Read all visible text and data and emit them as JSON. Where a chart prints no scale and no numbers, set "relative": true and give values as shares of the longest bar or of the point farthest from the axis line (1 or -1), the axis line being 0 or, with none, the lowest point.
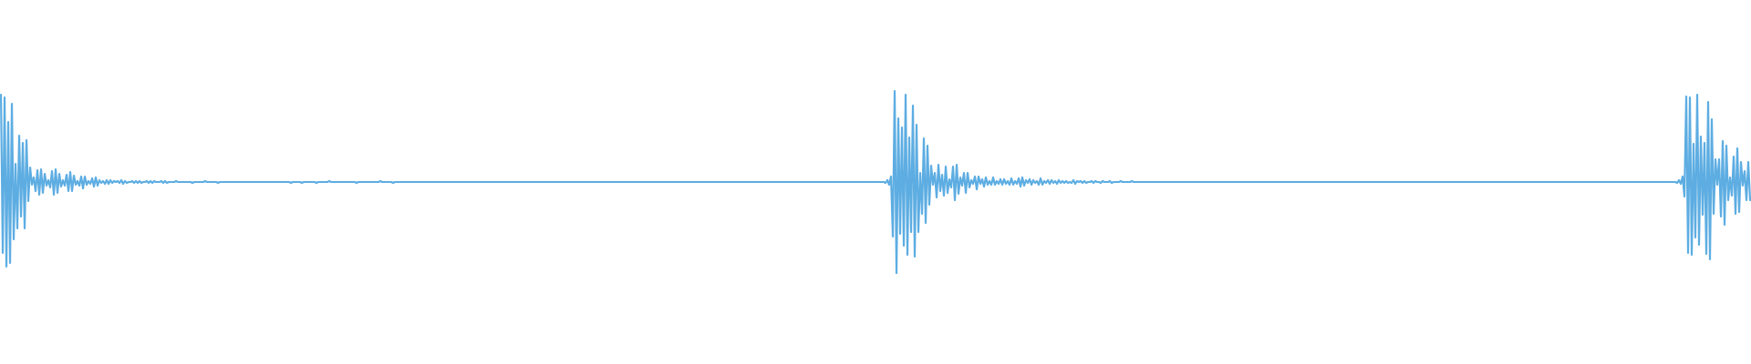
{
  "chart_data": {
    "type": "line",
    "relative": true,
    "color": "#5dade2",
    "categories": [
      null,
      null,
      null,
      null,
      null,
      null,
      null,
      null,
      null,
      null,
      null,
      null,
      null,
      null,
      null,
      null,
      null,
      null,
      null,
      null,
      null,
      null,
      null,
      null,
      null,
      null,
      null,
      null,
      null,
      null,
      null,
      null,
      null,
      null,
      null,
      null,
      null,
      null,
      null,
      null,
      null,
      null,
      null,
      null,
      null,
      null,
      null,
      null,
      null,
      null,
      null,
      null,
      null,
      null,
      null,
      null,
      null,
      null,
      null,
      null,
      null,
      null,
      null,
      null,
      null,
      null,
      null,
      null,
      null,
      null,
      null,
      null,
      null,
      null,
      null,
      null,
      null,
      null,
      null,
      null,
      null,
      null,
      null,
      null,
      null,
      null,
      null,
      null,
      null,
      null,
      null,
      null,
      null,
      null,
      null,
      null,
      null,
      null,
      null,
      null,
      null,
      null,
      null,
      null,
      null,
      null,
      null,
      null,
      null,
      null,
      null,
      null,
      null,
      null,
      null,
      null,
      null,
      null,
      null,
      null,
      null,
      null,
      null,
      null,
      null,
      null,
      null,
      null,
      null,
      null,
      null,
      null,
      null,
      null,
      null,
      null,
      null,
      null,
      null,
      null,
      null,
      null,
      null,
      null,
      null,
      null,
      null,
      null,
      null,
      null,
      null,
      null,
      null,
      null,
      null,
      null,
      null,
      null,
      null,
      null,
      null,
      null,
      null,
      null,
      null,
      null,
      null,
      null,
      null,
      null,
      null,
      null,
      null,
      null,
      null,
      null,
      null,
      null,
      null,
      null,
      null,
      null,
      null,
      null,
      null,
      null,
      null,
      null,
      null,
      null,
      null,
      null,
      null,
      null,
      null,
      null,
      null,
      null,
      null,
      null,
      null,
      null,
      null,
      null,
      null,
      null,
      null,
      null,
      null,
      null,
      null,
      null,
      null,
      null,
      null,
      null,
      null,
      null,
      null,
      null,
      null,
      null,
      null,
      null,
      null,
      null,
      null,
      null,
      null,
      null,
      null,
      null,
      null,
      null,
      null,
      null,
      null,
      null,
      null,
      null,
      null,
      null,
      null,
      null,
      null,
      null,
      null,
      null,
      null,
      null,
      null,
      null,
      null,
      null,
      null,
      null,
      null,
      null,
      null,
      null,
      null,
      null,
      null,
      null,
      null,
      null,
      null,
      null,
      null,
      null,
      null,
      null,
      null,
      null,
      null,
      null,
      null,
      null,
      null,
      null,
      null,
      null,
      null,
      null,
      null,
      null,
      null,
      null,
      null,
      null,
      null,
      null,
      null,
      null,
      null,
      null,
      null,
      null,
      null,
      null,
      null,
      null,
      null,
      null,
      null,
      null,
      null,
      null,
      null,
      null,
      null,
      null,
      null,
      null,
      null,
      null,
      null,
      null,
      null,
      null,
      null,
      null,
      null,
      null,
      null,
      null,
      null,
      null,
      null,
      null,
      null,
      null,
      null,
      null,
      null,
      null,
      null,
      null,
      null,
      null,
      null,
      null,
      null,
      null,
      null,
      null,
      null,
      null,
      null,
      null,
      null,
      null,
      null,
      null,
      null,
      null,
      null,
      null,
      null,
      null,
      null,
      null,
      null,
      null,
      null,
      null,
      null,
      null,
      null,
      null,
      null,
      null,
      null,
      null,
      null,
      null,
      null,
      null,
      null,
      null,
      null,
      null,
      null,
      null,
      null,
      null,
      null,
      null,
      null,
      null,
      null,
      null,
      null,
      null,
      null,
      null,
      null,
      null,
      null,
      null,
      null,
      null,
      null,
      null,
      null,
      null,
      null,
      null,
      null,
      null,
      null,
      null,
      null,
      null,
      null,
      null,
      null,
      null,
      null,
      null,
      null,
      null,
      null,
      null,
      null,
      null,
      null,
      null,
      null,
      null,
      null,
      null,
      null,
      null,
      null,
      null,
      null,
      null,
      null,
      null,
      null,
      null,
      null,
      null,
      null,
      null,
      null,
      null,
      null,
      null,
      null,
      null,
      null,
      null,
      null,
      null,
      null,
      null,
      null,
      null,
      null,
      null,
      null,
      null,
      null,
      null,
      null,
      null,
      null,
      null,
      null,
      null,
      null,
      null,
      null,
      null,
      null,
      null,
      null,
      null,
      null,
      null,
      null,
      null,
      null,
      null,
      null,
      null,
      null,
      null,
      null,
      null,
      null,
      null,
      null,
      null,
      null,
      null,
      null,
      null,
      null,
      null,
      null,
      null,
      null,
      null,
      null,
      null,
      null,
      null,
      null,
      null,
      null,
      null,
      null,
      null,
      null,
      null,
      null,
      null,
      null,
      null,
      null,
      null,
      null,
      null,
      null,
      null,
      null,
      null,
      null,
      null,
      null,
      null,
      null,
      null,
      null,
      null,
      null,
      null,
      null,
      null,
      null,
      null,
      null,
      null,
      null,
      null,
      null,
      null,
      null,
      null,
      null,
      null,
      null,
      null,
      null,
      null,
      null,
      null,
      null,
      null,
      null,
      null,
      null,
      null,
      null,
      null,
      null,
      null,
      null,
      null,
      null,
      null,
      null,
      null,
      null,
      null,
      null,
      null,
      null,
      null,
      null,
      null,
      null,
      null,
      null,
      null,
      null,
      null,
      null,
      null,
      null,
      null,
      null,
      null,
      null,
      null,
      null,
      null,
      null,
      null,
      null,
      null,
      null,
      null,
      null,
      null,
      null,
      null,
      null,
      null,
      null,
      null,
      null,
      null,
      null,
      null,
      null,
      null,
      null,
      null,
      null,
      null,
      null,
      null,
      null,
      null,
      null,
      null,
      null,
      null,
      null,
      null,
      null,
      null,
      null,
      null,
      null,
      null,
      null,
      null,
      null,
      null,
      null,
      null,
      null,
      null,
      null,
      null,
      null,
      null,
      null,
      null,
      null,
      null,
      null,
      null,
      null,
      null,
      null,
      null,
      null,
      null,
      null,
      null,
      null,
      null,
      null,
      null,
      null,
      null,
      null,
      null,
      null,
      null,
      null,
      null,
      null,
      null,
      null,
      null,
      null,
      null,
      null,
      null,
      null,
      null,
      null,
      null,
      null,
      null,
      null,
      null,
      null,
      null,
      null,
      null,
      null,
      null,
      null,
      null,
      null,
      null,
      null,
      null,
      null,
      null,
      null,
      null,
      null,
      null,
      null,
      null,
      null,
      null,
      null,
      null,
      null,
      null,
      null,
      null,
      null,
      null,
      null,
      null,
      null,
      null,
      null,
      null,
      null,
      null,
      null,
      null,
      null,
      null,
      null,
      null,
      null,
      null,
      null,
      null,
      null,
      null,
      null,
      null,
      null,
      null,
      null,
      null,
      null,
      null,
      null,
      null,
      null,
      null,
      null,
      null,
      null,
      null,
      null,
      null,
      null,
      null,
      null,
      null,
      null,
      null,
      null,
      null,
      null,
      null,
      null,
      null,
      null,
      null,
      null,
      null,
      null,
      null,
      null,
      null,
      null,
      null,
      null,
      null,
      null,
      null,
      null,
      null,
      null,
      null,
      null,
      null,
      null,
      null,
      null,
      null,
      null,
      null,
      null,
      null,
      null,
      null,
      null,
      null,
      null,
      null,
      null,
      null,
      null,
      null,
      null,
      null,
      null,
      null,
      null,
      null,
      null,
      null,
      null,
      null,
      null,
      null,
      null,
      null,
      null,
      null,
      null,
      null,
      null,
      null,
      null,
      null,
      null,
      null,
      null,
      null,
      null,
      null,
      null,
      null,
      null,
      null,
      null,
      null,
      null,
      null,
      null,
      null,
      null,
      null,
      null,
      null,
      null,
      null,
      null,
      null,
      null,
      null,
      null,
      null,
      null,
      null,
      null,
      null,
      null,
      null,
      null,
      null,
      null,
      null,
      null,
      null,
      null,
      null,
      null,
      null,
      null,
      null,
      null,
      null,
      null,
      null,
      null,
      null,
      null,
      null,
      null,
      null,
      null,
      null,
      null,
      null,
      null,
      null,
      null,
      null,
      null,
      null,
      null,
      null,
      null,
      null,
      null,
      null,
      null,
      null,
      null,
      null,
      null,
      null,
      null,
      null,
      null,
      null,
      null,
      null,
      null,
      null,
      null,
      null,
      null,
      null,
      null,
      null,
      null,
      null,
      null,
      null,
      null,
      null,
      null,
      null,
      null,
      null,
      null,
      null,
      null,
      null,
      null,
      null,
      null,
      null,
      null,
      null,
      null,
      null,
      null,
      null,
      null,
      null,
      null,
      null,
      null,
      null,
      null,
      null,
      null,
      null
    ],
    "values": [
      0.98,
      0.11,
      0.965,
      0.035,
      0.83,
      0.055,
      0.93,
      0.185,
      0.6,
      0.245,
      0.755,
      0.31,
      0.715,
      0.245,
      0.73,
      0.395,
      0.58,
      0.485,
      0.525,
      0.45,
      0.565,
      0.43,
      0.57,
      0.44,
      0.545,
      0.48,
      0.51,
      0.47,
      0.56,
      0.43,
      0.57,
      0.44,
      0.545,
      0.475,
      0.51,
      0.48,
      0.54,
      0.45,
      0.555,
      0.45,
      0.535,
      0.485,
      0.505,
      0.48,
      0.53,
      0.465,
      0.53,
      0.485,
      0.505,
      0.49,
      0.52,
      0.475,
      0.525,
      0.48,
      0.51,
      0.495,
      0.505,
      0.49,
      0.51,
      0.49,
      0.51,
      0.495,
      0.505,
      0.5,
      0.505,
      0.495,
      0.51,
      0.49,
      0.505,
      0.495,
      0.5,
      0.5,
      0.505,
      0.495,
      0.505,
      0.495,
      0.505,
      0.495,
      0.5,
      0.5,
      0.505,
      0.495,
      0.505,
      0.495,
      0.505,
      0.5,
      0.5,
      0.5,
      0.505,
      0.495,
      0.505,
      0.495,
      0.5,
      0.5,
      0.5,
      0.5,
      0.505,
      0.5,
      0.5,
      0.5,
      0.5,
      0.5,
      0.5,
      0.5,
      0.5,
      0.495,
      0.5,
      0.5,
      0.5,
      0.5,
      0.5,
      0.5,
      0.505,
      0.5,
      0.5,
      0.5,
      0.5,
      0.5,
      0.5,
      0.495,
      0.5,
      0.5,
      0.5,
      0.5,
      0.5,
      0.5,
      0.5,
      0.5,
      0.5,
      0.5,
      0.5,
      0.5,
      0.5,
      0.5,
      0.5,
      0.5,
      0.5,
      0.5,
      0.5,
      0.5,
      0.5,
      0.5,
      0.5,
      0.5,
      0.5,
      0.5,
      0.5,
      0.5,
      0.5,
      0.5,
      0.5,
      0.5,
      0.5,
      0.5,
      0.5,
      0.5,
      0.5,
      0.5,
      0.5,
      0.495,
      0.5,
      0.5,
      0.5,
      0.5,
      0.5,
      0.495,
      0.5,
      0.5,
      0.5,
      0.5,
      0.5,
      0.5,
      0.5,
      0.495,
      0.5,
      0.5,
      0.5,
      0.5,
      0.5,
      0.5,
      0.505,
      0.5,
      0.5,
      0.5,
      0.5,
      0.5,
      0.5,
      0.5,
      0.5,
      0.5,
      0.5,
      0.5,
      0.5,
      0.5,
      0.5,
      0.495,
      0.5,
      0.5,
      0.5,
      0.5,
      0.5,
      0.5,
      0.5,
      0.5,
      0.5,
      0.5,
      0.5,
      0.5,
      0.505,
      0.5,
      0.5,
      0.5,
      0.5,
      0.5,
      0.5,
      0.495,
      0.5,
      0.5,
      0.5,
      0.5,
      0.5,
      0.5,
      0.5,
      0.5,
      0.5,
      0.5,
      0.5,
      0.5,
      0.5,
      0.5,
      0.5,
      0.5,
      0.5,
      0.5,
      0.5,
      0.5,
      0.5,
      0.5,
      0.5,
      0.5,
      0.5,
      0.5,
      0.5,
      0.5,
      0.5,
      0.5,
      0.5,
      0.5,
      0.5,
      0.5,
      0.5,
      0.5,
      0.5,
      0.5,
      0.5,
      0.5,
      0.5,
      0.5,
      0.5,
      0.5,
      0.5,
      0.5,
      0.5,
      0.5,
      0.5,
      0.5,
      0.5,
      0.5,
      0.5,
      0.5,
      0.5,
      0.5,
      0.5,
      0.5,
      0.5,
      0.5,
      0.5,
      0.5,
      0.5,
      0.5,
      0.5,
      0.5,
      0.5,
      0.5,
      0.5,
      0.5,
      0.5,
      0.5,
      0.5,
      0.5,
      0.5,
      0.5,
      0.5,
      0.5,
      0.5,
      0.5,
      0.5,
      0.5,
      0.5,
      0.5,
      0.5,
      0.5,
      0.5,
      0.5,
      0.5,
      0.5,
      0.5,
      0.5,
      0.5,
      0.5,
      0.5,
      0.5,
      0.5,
      0.5,
      0.5,
      0.5,
      0.5,
      0.5,
      0.5,
      0.5,
      0.5,
      0.5,
      0.5,
      0.5,
      0.5,
      0.5,
      0.5,
      0.5,
      0.5,
      0.5,
      0.5,
      0.5,
      0.5,
      0.5,
      0.5,
      0.5,
      0.5,
      0.5,
      0.5,
      0.5,
      0.5,
      0.5,
      0.5,
      0.5,
      0.5,
      0.5,
      0.5,
      0.5,
      0.5,
      0.5,
      0.5,
      0.5,
      0.5,
      0.5,
      0.5,
      0.5,
      0.5,
      0.5,
      0.5,
      0.5,
      0.5,
      0.5,
      0.5,
      0.5,
      0.5,
      0.5,
      0.5,
      0.5,
      0.5,
      0.5,
      0.5,
      0.5,
      0.5,
      0.5,
      0.5,
      0.5,
      0.5,
      0.5,
      0.5,
      0.5,
      0.5,
      0.5,
      0.5,
      0.5,
      0.5,
      0.5,
      0.5,
      0.5,
      0.5,
      0.5,
      0.5,
      0.5,
      0.5,
      0.5,
      0.5,
      0.5,
      0.5,
      0.5,
      0.5,
      0.5,
      0.5,
      0.5,
      0.5,
      0.5,
      0.5,
      0.5,
      0.5,
      0.5,
      0.5,
      0.5,
      0.5,
      0.5,
      0.5,
      0.5,
      0.5,
      0.5,
      0.5,
      0.5,
      0.5,
      0.5,
      0.5,
      0.5,
      0.5,
      0.5,
      0.5,
      0.5,
      0.5,
      0.5,
      0.5,
      0.5,
      0.5,
      0.5,
      0.5,
      0.5,
      0.5,
      0.5,
      0.5,
      0.5,
      0.5,
      0.5,
      0.5,
      0.5,
      0.5,
      0.5,
      0.5,
      0.5,
      0.5,
      0.5,
      0.5,
      0.5,
      0.5,
      0.5,
      0.5,
      0.5,
      0.5,
      0.5,
      0.5,
      0.5,
      0.5,
      0.5,
      0.5,
      0.5,
      0.5,
      0.5,
      0.5,
      0.5,
      0.5,
      0.5,
      0.5,
      0.5,
      0.5,
      0.5,
      0.5,
      0.5,
      0.5,
      0.5,
      0.5,
      0.5,
      0.5,
      0.5,
      0.5,
      0.5,
      0.5,
      0.5,
      0.5,
      0.495,
      0.51,
      0.485,
      0.53,
      0.2,
      1,
      0,
      0.85,
      0.215,
      0.8,
      0.15,
      0.98,
      0.1,
      0.745,
      0.225,
      0.92,
      0.09,
      0.815,
      0.225,
      0.55,
      0.325,
      0.74,
      0.275,
      0.7,
      0.375,
      0.59,
      0.485,
      0.55,
      0.415,
      0.595,
      0.45,
      0.54,
      0.425,
      0.585,
      0.44,
      0.515,
      0.47,
      0.585,
      0.4,
      0.595,
      0.435,
      0.525,
      0.48,
      0.55,
      0.44,
      0.55,
      0.47,
      0.51,
      0.49,
      0.53,
      0.46,
      0.53,
      0.49,
      0.515,
      0.475,
      0.525,
      0.485,
      0.505,
      0.485,
      0.525,
      0.485,
      0.505,
      0.49,
      0.515,
      0.485,
      0.515,
      0.49,
      0.505,
      0.485,
      0.52,
      0.485,
      0.505,
      0.49,
      0.52,
      0.475,
      0.525,
      0.48,
      0.51,
      0.495,
      0.515,
      0.485,
      0.51,
      0.495,
      0.505,
      0.485,
      0.52,
      0.485,
      0.505,
      0.495,
      0.51,
      0.49,
      0.51,
      0.495,
      0.505,
      0.49,
      0.51,
      0.495,
      0.505,
      0.495,
      0.505,
      0.495,
      0.5,
      0.495,
      0.51,
      0.49,
      0.505,
      0.5,
      0.505,
      0.495,
      0.505,
      0.495,
      0.5,
      0.5,
      0.505,
      0.495,
      0.505,
      0.5,
      0.5,
      0.495,
      0.505,
      0.5,
      0.5,
      0.5,
      0.505,
      0.495,
      0.5,
      0.5,
      0.5,
      0.5,
      0.505,
      0.5,
      0.5,
      0.5,
      0.5,
      0.5,
      0.505,
      0.5,
      0.5,
      0.5,
      0.5,
      0.5,
      0.5,
      0.5,
      0.5,
      0.5,
      0.5,
      0.5,
      0.5,
      0.5,
      0.5,
      0.5,
      0.5,
      0.5,
      0.5,
      0.5,
      0.5,
      0.5,
      0.5,
      0.5,
      0.5,
      0.5,
      0.5,
      0.5,
      0.5,
      0.5,
      0.5,
      0.5,
      0.5,
      0.5,
      0.5,
      0.5,
      0.5,
      0.5,
      0.5,
      0.5,
      0.5,
      0.5,
      0.5,
      0.5,
      0.5,
      0.5,
      0.5,
      0.5,
      0.5,
      0.5,
      0.5,
      0.5,
      0.5,
      0.5,
      0.5,
      0.5,
      0.5,
      0.5,
      0.5,
      0.5,
      0.5,
      0.5,
      0.5,
      0.5,
      0.5,
      0.5,
      0.5,
      0.5,
      0.5,
      0.5,
      0.5,
      0.5,
      0.5,
      0.5,
      0.5,
      0.5,
      0.5,
      0.5,
      0.5,
      0.5,
      0.5,
      0.5,
      0.5,
      0.5,
      0.5,
      0.5,
      0.5,
      0.5,
      0.5,
      0.5,
      0.5,
      0.5,
      0.5,
      0.5,
      0.5,
      0.5,
      0.5,
      0.5,
      0.5,
      0.5,
      0.5,
      0.5,
      0.5,
      0.5,
      0.5,
      0.5,
      0.5,
      0.5,
      0.5,
      0.5,
      0.5,
      0.5,
      0.5,
      0.5,
      0.5,
      0.5,
      0.5,
      0.5,
      0.5,
      0.5,
      0.5,
      0.5,
      0.5,
      0.5,
      0.5,
      0.5,
      0.5,
      0.5,
      0.5,
      0.5,
      0.5,
      0.5,
      0.5,
      0.5,
      0.5,
      0.5,
      0.5,
      0.5,
      0.5,
      0.5,
      0.5,
      0.5,
      0.5,
      0.5,
      0.5,
      0.5,
      0.5,
      0.5,
      0.5,
      0.5,
      0.5,
      0.5,
      0.5,
      0.5,
      0.5,
      0.5,
      0.5,
      0.5,
      0.5,
      0.5,
      0.5,
      0.5,
      0.5,
      0.5,
      0.5,
      0.5,
      0.5,
      0.5,
      0.5,
      0.5,
      0.5,
      0.5,
      0.5,
      0.5,
      0.5,
      0.5,
      0.5,
      0.5,
      0.5,
      0.5,
      0.5,
      0.5,
      0.5,
      0.5,
      0.5,
      0.5,
      0.5,
      0.5,
      0.5,
      0.5,
      0.5,
      0.5,
      0.5,
      0.5,
      0.5,
      0.5,
      0.5,
      0.5,
      0.5,
      0.5,
      0.5,
      0.5,
      0.5,
      0.5,
      0.5,
      0.5,
      0.5,
      0.5,
      0.5,
      0.5,
      0.5,
      0.5,
      0.5,
      0.5,
      0.5,
      0.5,
      0.5,
      0.5,
      0.5,
      0.5,
      0.5,
      0.5,
      0.5,
      0.5,
      0.5,
      0.5,
      0.5,
      0.5,
      0.5,
      0.5,
      0.5,
      0.5,
      0.5,
      0.5,
      0.5,
      0.5,
      0.5,
      0.5,
      0.5,
      0.5,
      0.5,
      0.5,
      0.5,
      0.5,
      0.5,
      0.5,
      0.5,
      0.5,
      0.5,
      0.5,
      0.5,
      0.5,
      0.5,
      0.5,
      0.5,
      0.5,
      0.5,
      0.5,
      0.5,
      0.5,
      0.5,
      0.5,
      0.5,
      0.5,
      0.5,
      0.5,
      0.5,
      0.5,
      0.5,
      0.5,
      0.5,
      0.5,
      0.5,
      0.5,
      0.5,
      0.5,
      0.5,
      0.5,
      0.5,
      0.5,
      0.5,
      0.5,
      0.5,
      0.5,
      0.5,
      0.5,
      0.5,
      0.5,
      0.5,
      0.5,
      0.5,
      0.5,
      0.5,
      0.5,
      0.5,
      0.5,
      0.5,
      0.5,
      0.5,
      0.495,
      0.51,
      0.49,
      0.53,
      0.42,
      0.97,
      0.11,
      0.965,
      0.1,
      0.71,
      0.195,
      0.98,
      0.155,
      0.75,
      0.32,
      0.715,
      0.105,
      0.94,
      0.075,
      0.845,
      0.325,
      0.625,
      0.485,
      0.625,
      0.31,
      0.725,
      0.265,
      0.7,
      0.4,
      0.525,
      0.425,
      0.64,
      0.325,
      0.685,
      0.335,
      0.61,
      0.48,
      0.56,
      0.4,
      0.61,
      0.4
    ]
  }
}
